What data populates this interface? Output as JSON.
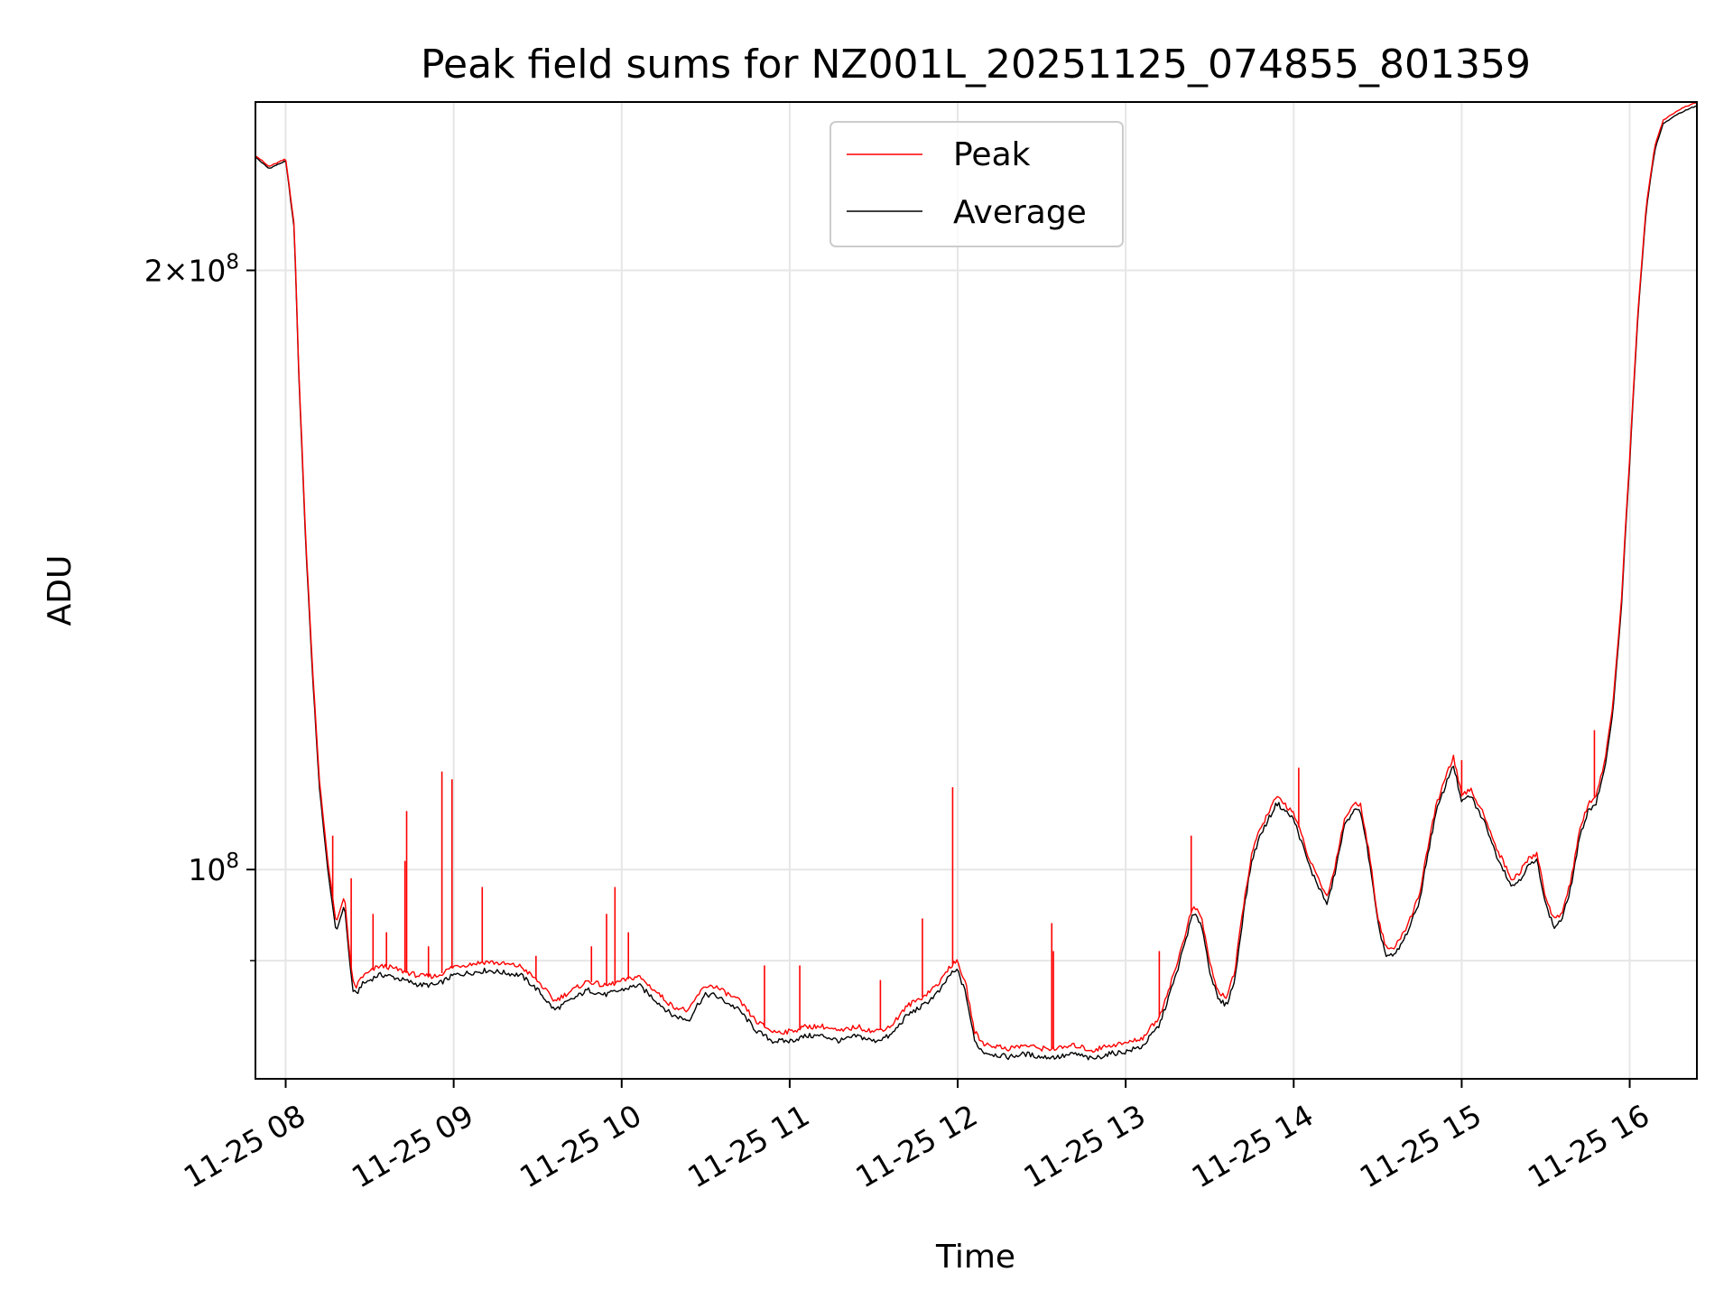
{
  "chart_data": {
    "type": "line",
    "title": "Peak field sums for NZ001L_20251125_074855_801359",
    "xlabel": "Time",
    "ylabel": "ADU",
    "yscale": "log",
    "xlim": [
      7.82,
      16.4
    ],
    "ylim": [
      78500000,
      243000000
    ],
    "grid": true,
    "legend_position": "top-center",
    "x_ticks": [
      {
        "value": 8,
        "label": "11-25 08"
      },
      {
        "value": 9,
        "label": "11-25 09"
      },
      {
        "value": 10,
        "label": "11-25 10"
      },
      {
        "value": 11,
        "label": "11-25 11"
      },
      {
        "value": 12,
        "label": "11-25 12"
      },
      {
        "value": 13,
        "label": "11-25 13"
      },
      {
        "value": 14,
        "label": "11-25 14"
      },
      {
        "value": 15,
        "label": "11-25 15"
      },
      {
        "value": 16,
        "label": "11-25 16"
      }
    ],
    "y_major_ticks": [
      {
        "value": 100000000,
        "base": "10",
        "exp": "8",
        "prefix": ""
      },
      {
        "value": 200000000,
        "base": "10",
        "exp": "8",
        "prefix": "2×"
      }
    ],
    "y_minor_grid": [
      90000000
    ],
    "series": [
      {
        "name": "Average",
        "color": "#000000",
        "x": [
          7.82,
          7.9,
          8.0,
          8.05,
          8.08,
          8.12,
          8.16,
          8.2,
          8.25,
          8.3,
          8.35,
          8.38,
          8.4,
          8.42,
          8.45,
          8.5,
          8.55,
          8.6,
          8.7,
          8.8,
          8.9,
          9.0,
          9.2,
          9.4,
          9.5,
          9.6,
          9.7,
          9.8,
          9.9,
          10.0,
          10.1,
          10.2,
          10.3,
          10.4,
          10.45,
          10.5,
          10.55,
          10.6,
          10.7,
          10.8,
          10.9,
          11.0,
          11.1,
          11.2,
          11.3,
          11.4,
          11.5,
          11.6,
          11.7,
          11.8,
          11.9,
          11.95,
          12.0,
          12.05,
          12.1,
          12.15,
          12.2,
          12.3,
          12.4,
          12.5,
          12.6,
          12.7,
          12.8,
          12.9,
          13.0,
          13.1,
          13.2,
          13.3,
          13.4,
          13.45,
          13.5,
          13.55,
          13.6,
          13.65,
          13.7,
          13.75,
          13.8,
          13.85,
          13.9,
          14.0,
          14.1,
          14.2,
          14.25,
          14.3,
          14.35,
          14.4,
          14.45,
          14.5,
          14.55,
          14.6,
          14.65,
          14.7,
          14.75,
          14.8,
          14.85,
          14.9,
          14.95,
          15.0,
          15.05,
          15.1,
          15.15,
          15.2,
          15.25,
          15.3,
          15.35,
          15.4,
          15.45,
          15.5,
          15.55,
          15.6,
          15.65,
          15.7,
          15.75,
          15.8,
          15.85,
          15.9,
          15.95,
          16.0,
          16.05,
          16.1,
          16.15,
          16.2,
          16.3,
          16.4
        ],
        "y": [
          228000000,
          225000000,
          227000000,
          210000000,
          175000000,
          145000000,
          125000000,
          110000000,
          100000000,
          93000000,
          96000000,
          90000000,
          87000000,
          86500000,
          87500000,
          88000000,
          88500000,
          88500000,
          88000000,
          87500000,
          87500000,
          88500000,
          89000000,
          88500000,
          87000000,
          85000000,
          86000000,
          87000000,
          86500000,
          87000000,
          87500000,
          86000000,
          84500000,
          84000000,
          85500000,
          86500000,
          86500000,
          86000000,
          85000000,
          83000000,
          82000000,
          82000000,
          82500000,
          82500000,
          82000000,
          82500000,
          82000000,
          82500000,
          84500000,
          85500000,
          87000000,
          88500000,
          89000000,
          86500000,
          82000000,
          81000000,
          80800000,
          80500000,
          80800000,
          80500000,
          80500000,
          80800000,
          80300000,
          80800000,
          81000000,
          81500000,
          83500000,
          88500000,
          95000000,
          94000000,
          89000000,
          86000000,
          85500000,
          88000000,
          95000000,
          101000000,
          104000000,
          106000000,
          108000000,
          106000000,
          100000000,
          96000000,
          100000000,
          105000000,
          107000000,
          107000000,
          101000000,
          94000000,
          90500000,
          90500000,
          92000000,
          94000000,
          96500000,
          102000000,
          107000000,
          110000000,
          113000000,
          108000000,
          109000000,
          107000000,
          105000000,
          102000000,
          100000000,
          98000000,
          99000000,
          100500000,
          101000000,
          96000000,
          93500000,
          94500000,
          98000000,
          103500000,
          107000000,
          108000000,
          112000000,
          120000000,
          135000000,
          160000000,
          190000000,
          215000000,
          230000000,
          237000000,
          240000000,
          242000000
        ]
      },
      {
        "name": "Peak",
        "color": "#ff0000",
        "x": [
          7.82,
          7.9,
          8.0,
          8.05,
          8.08,
          8.12,
          8.16,
          8.2,
          8.25,
          8.3,
          8.35,
          8.38,
          8.4,
          8.42,
          8.45,
          8.5,
          8.55,
          8.6,
          8.7,
          8.8,
          8.9,
          9.0,
          9.2,
          9.4,
          9.5,
          9.6,
          9.7,
          9.8,
          9.9,
          10.0,
          10.1,
          10.2,
          10.3,
          10.4,
          10.45,
          10.5,
          10.55,
          10.6,
          10.7,
          10.8,
          10.9,
          11.0,
          11.1,
          11.2,
          11.3,
          11.4,
          11.5,
          11.6,
          11.7,
          11.8,
          11.9,
          11.95,
          12.0,
          12.05,
          12.1,
          12.15,
          12.2,
          12.3,
          12.4,
          12.5,
          12.6,
          12.7,
          12.8,
          12.9,
          13.0,
          13.1,
          13.2,
          13.3,
          13.4,
          13.45,
          13.5,
          13.55,
          13.6,
          13.65,
          13.7,
          13.75,
          13.8,
          13.85,
          13.9,
          14.0,
          14.1,
          14.2,
          14.25,
          14.3,
          14.35,
          14.4,
          14.45,
          14.5,
          14.55,
          14.6,
          14.65,
          14.7,
          14.75,
          14.8,
          14.85,
          14.9,
          14.95,
          15.0,
          15.05,
          15.1,
          15.15,
          15.2,
          15.25,
          15.3,
          15.35,
          15.4,
          15.45,
          15.5,
          15.55,
          15.6,
          15.65,
          15.7,
          15.75,
          15.8,
          15.85,
          15.9,
          15.95,
          16.0,
          16.05,
          16.1,
          16.15,
          16.2,
          16.3,
          16.4
        ],
        "y": [
          228500000,
          225500000,
          227500000,
          211000000,
          176000000,
          146000000,
          126000000,
          111000000,
          101000000,
          94000000,
          97000000,
          90800000,
          87800000,
          87300000,
          88300000,
          88800000,
          89400000,
          89400000,
          88900000,
          88400000,
          88400000,
          89400000,
          89900000,
          89400000,
          87900000,
          85900000,
          86900000,
          87900000,
          87400000,
          87900000,
          88400000,
          86900000,
          85400000,
          84900000,
          86400000,
          87400000,
          87400000,
          86900000,
          85900000,
          83900000,
          82900000,
          82900000,
          83400000,
          83400000,
          82900000,
          83400000,
          82900000,
          83400000,
          85400000,
          86400000,
          87900000,
          89400000,
          89900000,
          87400000,
          82900000,
          81800000,
          81600000,
          81300000,
          81600000,
          81300000,
          81300000,
          81600000,
          81100000,
          81600000,
          81800000,
          82300000,
          84300000,
          89300000,
          95800000,
          94800000,
          89800000,
          86800000,
          86300000,
          88800000,
          95800000,
          101800000,
          104800000,
          106800000,
          108800000,
          106800000,
          100800000,
          96800000,
          100800000,
          105800000,
          107800000,
          107800000,
          101800000,
          94800000,
          91300000,
          91300000,
          92800000,
          94800000,
          97300000,
          102800000,
          107800000,
          111000000,
          114000000,
          108800000,
          109800000,
          107800000,
          105800000,
          102800000,
          100800000,
          98800000,
          99800000,
          101300000,
          101800000,
          96800000,
          94300000,
          95300000,
          98800000,
          104300000,
          107800000,
          109000000,
          113000000,
          121000000,
          136000000,
          161000000,
          191000000,
          216000000,
          231000000,
          238000000,
          241000000,
          243000000
        ]
      }
    ],
    "peak_spikes": [
      {
        "x": 8.28,
        "y": 104000000
      },
      {
        "x": 8.39,
        "y": 99000000
      },
      {
        "x": 8.52,
        "y": 95000000
      },
      {
        "x": 8.6,
        "y": 93000000
      },
      {
        "x": 8.71,
        "y": 101000000
      },
      {
        "x": 8.72,
        "y": 107000000
      },
      {
        "x": 8.85,
        "y": 91500000
      },
      {
        "x": 8.93,
        "y": 112000000
      },
      {
        "x": 8.99,
        "y": 111000000
      },
      {
        "x": 9.17,
        "y": 98000000
      },
      {
        "x": 9.49,
        "y": 90500000
      },
      {
        "x": 9.82,
        "y": 91500000
      },
      {
        "x": 9.91,
        "y": 95000000
      },
      {
        "x": 9.96,
        "y": 98000000
      },
      {
        "x": 10.04,
        "y": 93000000
      },
      {
        "x": 10.85,
        "y": 89500000
      },
      {
        "x": 11.06,
        "y": 89500000
      },
      {
        "x": 11.54,
        "y": 88000000
      },
      {
        "x": 11.79,
        "y": 94500000
      },
      {
        "x": 11.97,
        "y": 110000000
      },
      {
        "x": 12.56,
        "y": 94000000
      },
      {
        "x": 12.57,
        "y": 91000000
      },
      {
        "x": 13.2,
        "y": 91000000
      },
      {
        "x": 13.39,
        "y": 104000000
      },
      {
        "x": 14.03,
        "y": 112500000
      },
      {
        "x": 15.0,
        "y": 113500000
      },
      {
        "x": 15.79,
        "y": 117500000
      }
    ]
  }
}
